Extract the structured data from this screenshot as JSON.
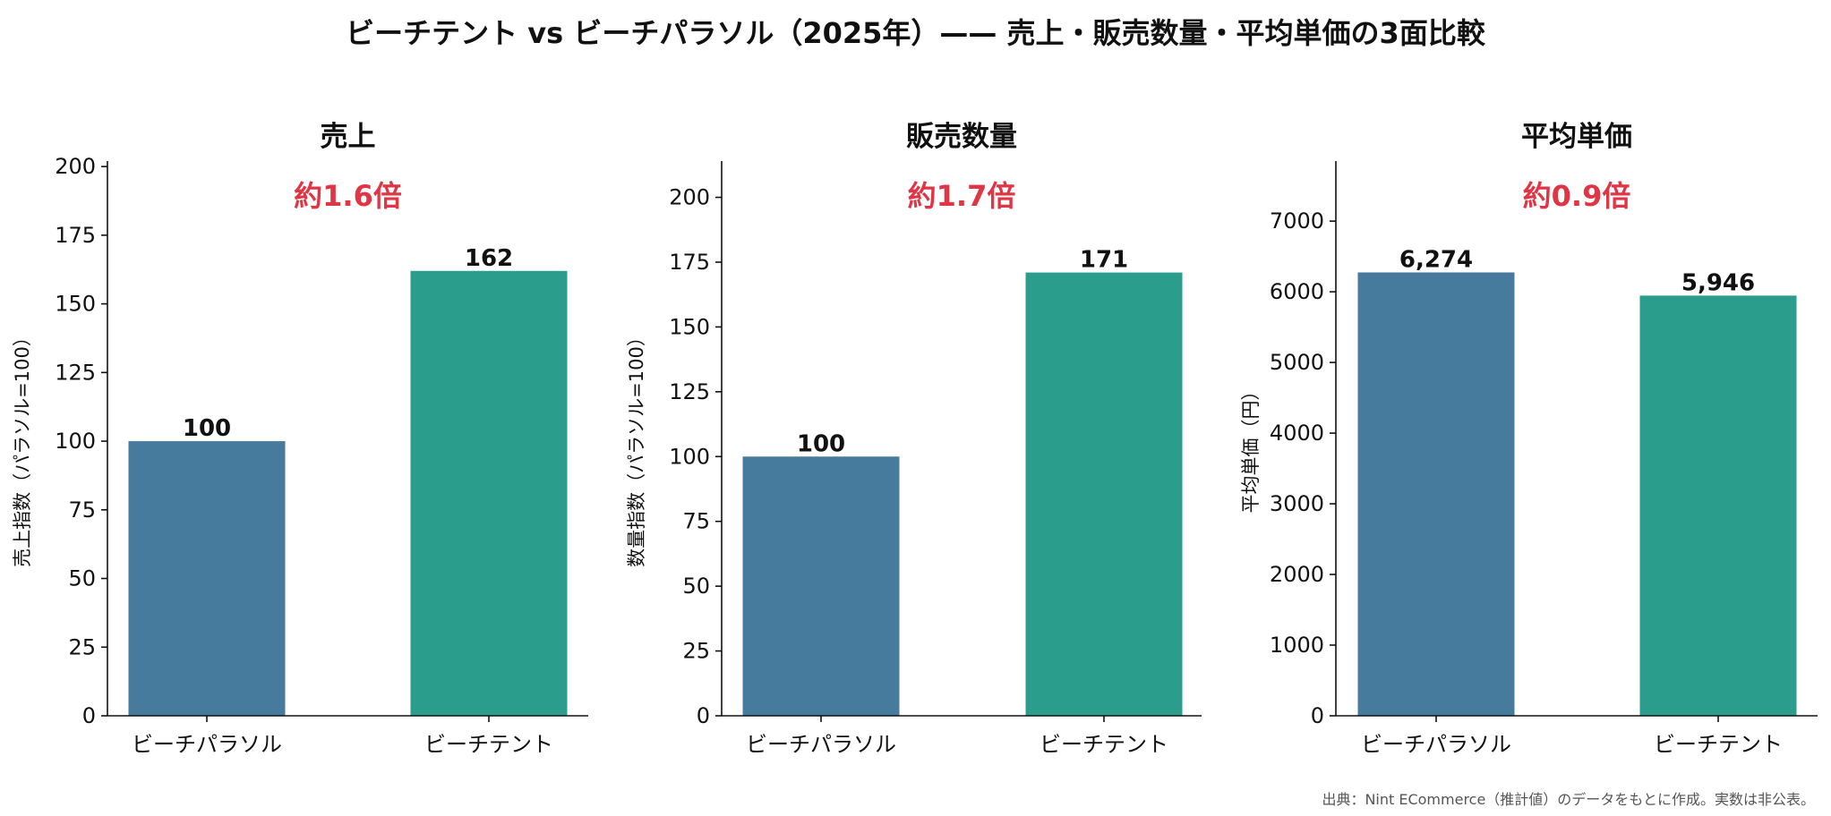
{
  "title": "ビーチテント vs ビーチパラソル（2025年）—— 売上・販売数量・平均単価の3面比較",
  "source_note": "出典：Nint ECommerce（推計値）のデータをもとに作成。実数は非公表。",
  "colors": {
    "parasol": "#477b9d",
    "tent": "#2a9d8c",
    "ratio": "#e03545"
  },
  "chart_data": [
    {
      "type": "bar",
      "title": "売上",
      "annotation": "約1.6倍",
      "ylabel": "売上指数（パラソル=100）",
      "categories": [
        "ビーチパラソル",
        "ビーチテント"
      ],
      "values": [
        100,
        162
      ],
      "value_labels": [
        "100",
        "162"
      ],
      "ylim": [
        0,
        202
      ],
      "yticks": [
        0,
        25,
        50,
        75,
        100,
        125,
        150,
        175,
        200
      ],
      "grid": false
    },
    {
      "type": "bar",
      "title": "販売数量",
      "annotation": "約1.7倍",
      "ylabel": "数量指数（パラソル=100）",
      "categories": [
        "ビーチパラソル",
        "ビーチテント"
      ],
      "values": [
        100,
        171
      ],
      "value_labels": [
        "100",
        "171"
      ],
      "ylim": [
        0,
        214
      ],
      "yticks": [
        0,
        25,
        50,
        75,
        100,
        125,
        150,
        175,
        200
      ],
      "grid": false
    },
    {
      "type": "bar",
      "title": "平均単価",
      "annotation": "約0.9倍",
      "ylabel": "平均単価（円）",
      "categories": [
        "ビーチパラソル",
        "ビーチテント"
      ],
      "values": [
        6274,
        5946
      ],
      "value_labels": [
        "6,274",
        "5,946"
      ],
      "ylim": [
        0,
        7850
      ],
      "yticks": [
        0,
        1000,
        2000,
        3000,
        4000,
        5000,
        6000,
        7000
      ],
      "grid": false
    }
  ]
}
